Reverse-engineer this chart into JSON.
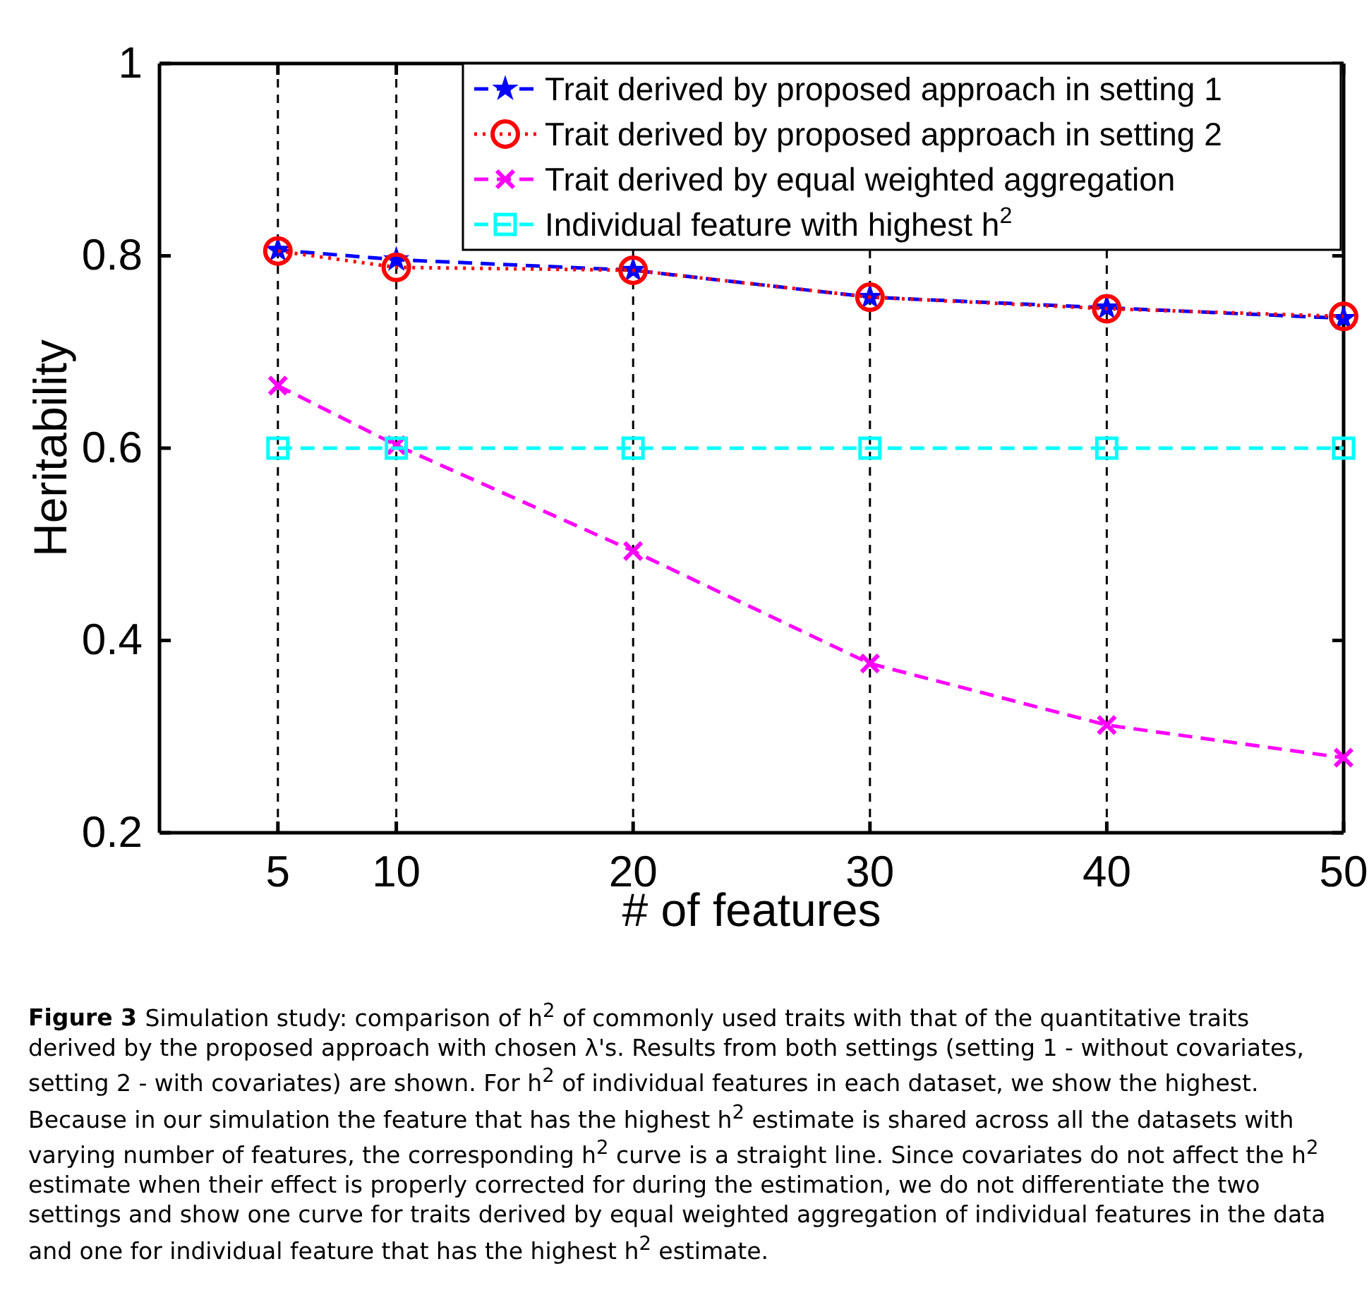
{
  "chart_data": {
    "type": "line",
    "xlabel": "# of features",
    "ylabel": "Heritability",
    "x": [
      5,
      10,
      20,
      30,
      40,
      50
    ],
    "series": [
      {
        "name": "Trait derived by proposed approach in setting 1",
        "color": "#0000ff",
        "marker": "star",
        "line_style": "dashed",
        "values": [
          0.806,
          0.796,
          0.785,
          0.757,
          0.746,
          0.735
        ]
      },
      {
        "name": "Trait derived by proposed approach in setting 2",
        "color": "#ff0000",
        "marker": "circle",
        "line_style": "dotted",
        "values": [
          0.805,
          0.788,
          0.785,
          0.757,
          0.745,
          0.737
        ]
      },
      {
        "name": "Trait derived by equal weighted aggregation",
        "color": "#ff00ff",
        "marker": "cross",
        "line_style": "dashed",
        "values": [
          0.665,
          0.603,
          0.493,
          0.376,
          0.312,
          0.278
        ]
      },
      {
        "name": "Individual feature with highest h$^{2}$",
        "color": "#00ffff",
        "marker": "square",
        "line_style": "dashed",
        "values": [
          0.6,
          0.6,
          0.6,
          0.6,
          0.6,
          0.6
        ]
      }
    ],
    "xlim": [
      0,
      50
    ],
    "xticks": [
      5,
      10,
      20,
      30,
      40,
      50
    ],
    "ylim": [
      0.2,
      1
    ],
    "yticks": [
      0.2,
      0.4,
      0.6,
      0.8,
      1
    ],
    "grid": "x",
    "legend": "top right",
    "annotations": [
      "Figure 3",
      "Simulation study: comparison of h$^{2}$ of commonly used traits with that of the quantitative traits derived by the proposed approach with chosen λ's. Results from both settings (setting 1 - without covariates, setting 2 - with covariates) are shown. For h$^{2}$ of individual features in each dataset, we show the highest. Because in our simulation the feature that has the highest h$^{2}$ estimate is shared across all the datasets with varying number of features, the corresponding h$^{2}$ curve is a straight line. Since covariates do not affect the h$^{2}$ estimate when their effect is properly corrected for during the estimation, we do not differentiate the two settings and show one curve for traits derived by equal weighted aggregation of individual features in the data and one for individual feature that has the highest h$^{2}$ estimate."
    ]
  }
}
